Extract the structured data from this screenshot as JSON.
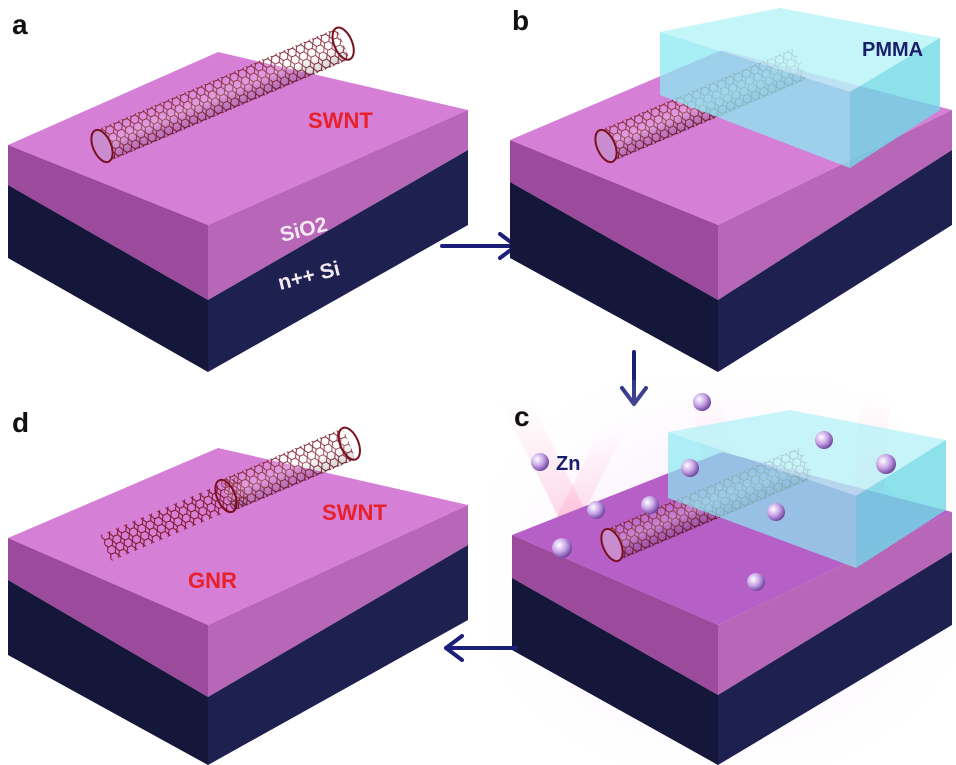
{
  "panels": [
    {
      "letter": "a",
      "labels": {
        "tube": "SWNT",
        "oxide": "SiO2",
        "substrate": "n++ Si"
      }
    },
    {
      "letter": "b",
      "labels": {
        "mask": "PMMA"
      }
    },
    {
      "letter": "c",
      "labels": {
        "ion": "Zn"
      }
    },
    {
      "letter": "d",
      "labels": {
        "tube": "SWNT",
        "ribbon": "GNR"
      }
    }
  ],
  "colors": {
    "oxide_top": "#d67fd6",
    "oxide_side": "#9c4a9c",
    "silicon_side": "#14163a",
    "label_red": "#e8202a",
    "label_navy": "#1b1f6b",
    "arrow": "#1b1f7a",
    "pmma": "#8be9f2",
    "tube": "#7a1020"
  },
  "arrows": [
    {
      "from": "a",
      "to": "b",
      "direction": "right"
    },
    {
      "from": "b",
      "to": "c",
      "direction": "down"
    },
    {
      "from": "c",
      "to": "d",
      "direction": "left"
    }
  ]
}
